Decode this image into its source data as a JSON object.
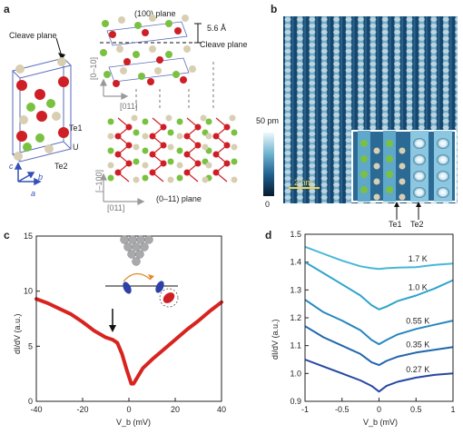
{
  "panels": {
    "a": {
      "label": "a",
      "cleave_plane_left": "Cleave plane",
      "plane_100": "(100) plane",
      "spacing": "5.6 Å",
      "cleave_plane_right": "Cleave plane",
      "te1": "Te1",
      "u": "U",
      "te2": "Te2",
      "axis_c": "c",
      "axis_b": "b",
      "axis_a": "a",
      "dir_0m10": "[0–10]",
      "dir_011_top": "[011]",
      "dir_m100": "[–100]",
      "dir_011_bottom": "[011]",
      "plane_0m11": "(0–11) plane"
    },
    "b": {
      "label": "b",
      "scale_top": "50 pm",
      "scale_bottom": "0",
      "scalebar": "2 nm",
      "te1": "Te1",
      "te2": "Te2"
    },
    "c": {
      "label": "c"
    },
    "d": {
      "label": "d"
    }
  },
  "chart_data": [
    {
      "panel": "c",
      "type": "line",
      "xlabel": "V_b (mV)",
      "ylabel": "dI/dV (a.u.)",
      "xlim": [
        -40,
        40
      ],
      "ylim": [
        0,
        15
      ],
      "xticks": [
        -40,
        -20,
        0,
        20,
        40
      ],
      "yticks": [
        0,
        5,
        10,
        15
      ],
      "color": "#d8231f",
      "series": [
        {
          "x": [
            -40,
            -35,
            -30,
            -25,
            -20,
            -15,
            -10,
            -7,
            -5,
            -3,
            -1,
            1,
            2,
            4,
            6,
            10,
            15,
            20,
            25,
            30,
            35,
            40
          ],
          "y": [
            9.3,
            8.9,
            8.4,
            7.9,
            7.2,
            6.4,
            5.8,
            5.6,
            5.3,
            4.3,
            2.9,
            1.6,
            1.6,
            2.3,
            3.0,
            3.8,
            4.7,
            5.6,
            6.5,
            7.3,
            8.2,
            9.0
          ]
        }
      ]
    },
    {
      "panel": "d",
      "type": "line",
      "xlabel": "V_b (mV)",
      "ylabel": "dI/dV (a.u.)",
      "xlim": [
        -1,
        1
      ],
      "ylim": [
        0.9,
        1.5
      ],
      "xticks": [
        -1,
        -0.5,
        0,
        0.5,
        1
      ],
      "yticks": [
        0.9,
        1.0,
        1.1,
        1.2,
        1.3,
        1.4,
        1.5
      ],
      "x": [
        -1,
        -0.75,
        -0.5,
        -0.25,
        -0.1,
        0,
        0.1,
        0.25,
        0.5,
        0.75,
        1
      ],
      "series": [
        {
          "name": "1.7 K",
          "color": "#46b8d6",
          "values": [
            1.455,
            1.43,
            1.405,
            1.385,
            1.378,
            1.375,
            1.378,
            1.38,
            1.382,
            1.39,
            1.395
          ]
        },
        {
          "name": "1.0 K",
          "color": "#2fa3cc",
          "values": [
            1.4,
            1.36,
            1.32,
            1.28,
            1.245,
            1.23,
            1.24,
            1.26,
            1.28,
            1.305,
            1.335
          ]
        },
        {
          "name": "0.55 K",
          "color": "#2586bf",
          "values": [
            1.265,
            1.22,
            1.19,
            1.155,
            1.12,
            1.105,
            1.12,
            1.14,
            1.16,
            1.175,
            1.19
          ]
        },
        {
          "name": "0.35 K",
          "color": "#1f66ad",
          "values": [
            1.17,
            1.13,
            1.1,
            1.07,
            1.04,
            1.03,
            1.045,
            1.06,
            1.075,
            1.085,
            1.095
          ]
        },
        {
          "name": "0.27 K",
          "color": "#2546a3",
          "values": [
            1.05,
            1.025,
            1.0,
            0.975,
            0.955,
            0.935,
            0.955,
            0.97,
            0.985,
            0.995,
            1.0
          ]
        }
      ]
    }
  ],
  "colors": {
    "te": "#7ac141",
    "u": "#cf1f26",
    "te2": "#d8cfb2",
    "stm_dark": "#0c2a48",
    "stm_light": "#cde6f0",
    "axis_blue": "#3550b5"
  }
}
